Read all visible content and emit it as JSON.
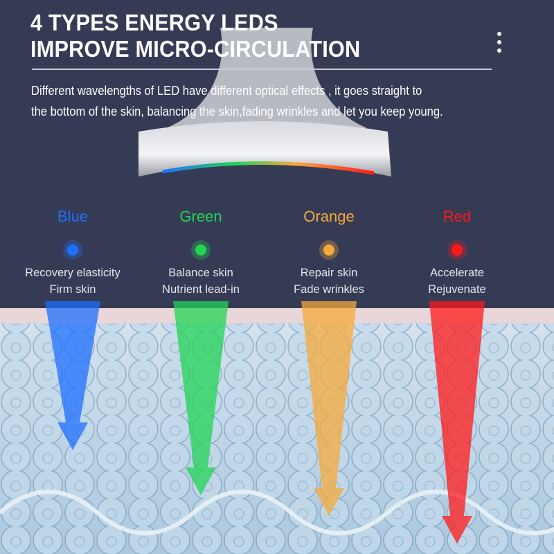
{
  "header": {
    "title_line1": "4 TYPES ENERGY LEDS",
    "title_line2": "IMPROVE MICRO-CIRCULATION",
    "menu_icon": "vertical-ellipsis-icon"
  },
  "description": {
    "line1": "Different wavelengths of LED have different optical effects , it  goes straight to",
    "line2": "the bottom of the skin, balancing the skin,fading wrinkles and let you keep young."
  },
  "leds": [
    {
      "name": "Blue",
      "color": "#1f6fff",
      "effect1": "Recovery elasticity",
      "effect2": "Firm skin"
    },
    {
      "name": "Green",
      "color": "#22d455",
      "effect1": "Balance skin",
      "effect2": "Nutrient lead-in"
    },
    {
      "name": "Orange",
      "color": "#f5a93a",
      "effect1": "Repair skin",
      "effect2": "Fade wrinkles"
    },
    {
      "name": "Red",
      "color": "#ff1a1a",
      "effect1": "Accelerate",
      "effect2": "Rejuvenate"
    }
  ],
  "colors": {
    "background": "#363b55",
    "skin": "#b9d3e6"
  }
}
